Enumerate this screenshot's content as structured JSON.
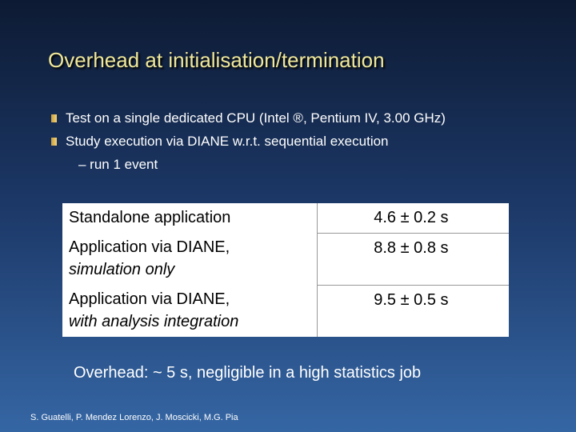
{
  "title": "Overhead at initialisation/termination",
  "bullets": [
    {
      "text": "Test on a single dedicated CPU (Intel ®, Pentium IV, 3.00 GHz)"
    },
    {
      "text": "Study execution via DIANE w.r.t. sequential execution",
      "sub": "– run 1 event"
    }
  ],
  "table": {
    "rows": [
      {
        "label": "Standalone application",
        "value": "4.6 ± 0.2 s"
      },
      {
        "label": "Application via DIANE,",
        "detail": "simulation only",
        "value": "8.8 ± 0.8 s"
      },
      {
        "label": "Application via DIANE,",
        "detail": "with analysis integration",
        "value": "9.5 ± 0.5 s"
      }
    ]
  },
  "summary": "Overhead: ~ 5 s, negligible in a high statistics job",
  "footer": "S. Guatelli, P. Mendez Lorenzo, J. Moscicki, M.G. Pia"
}
